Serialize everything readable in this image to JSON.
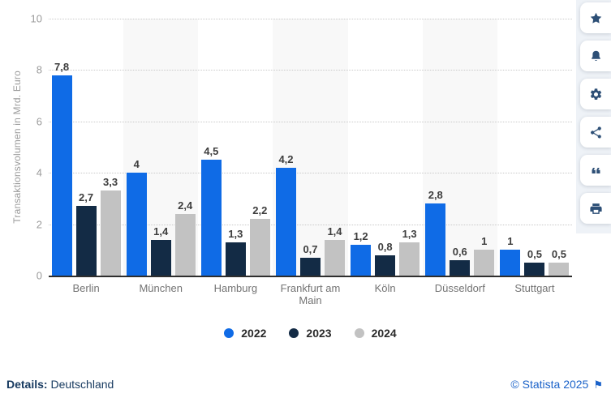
{
  "chart_data": {
    "type": "bar",
    "title": "",
    "ylabel": "Transaktionsvolumen in Mrd. Euro",
    "xlabel": "",
    "ylim": [
      0,
      10
    ],
    "yticks": [
      0,
      2,
      4,
      6,
      8,
      10
    ],
    "grid": "horizontal-dotted",
    "legend_position": "bottom-center",
    "categories": [
      "Berlin",
      "München",
      "Hamburg",
      "Frankfurt am Main",
      "Köln",
      "Düsseldorf",
      "Stuttgart"
    ],
    "shaded_categories": [
      "München",
      "Frankfurt am Main",
      "Düsseldorf"
    ],
    "series": [
      {
        "name": "2022",
        "color": "#0f6be6",
        "values": [
          7.8,
          4,
          4.5,
          4.2,
          1.2,
          2.8,
          1
        ],
        "labels": [
          "7,8",
          "4",
          "4,5",
          "4,2",
          "1,2",
          "2,8",
          "1"
        ]
      },
      {
        "name": "2023",
        "color": "#132b45",
        "values": [
          2.7,
          1.4,
          1.3,
          0.7,
          0.8,
          0.6,
          0.5
        ],
        "labels": [
          "2,7",
          "1,4",
          "1,3",
          "0,7",
          "0,8",
          "0,6",
          "0,5"
        ]
      },
      {
        "name": "2024",
        "color": "#c2c2c2",
        "values": [
          3.3,
          2.4,
          2.2,
          1.4,
          1.3,
          1,
          0.5
        ],
        "labels": [
          "3,3",
          "2,4",
          "2,2",
          "1,4",
          "1,3",
          "1",
          "0,5"
        ]
      }
    ]
  },
  "sidebar": {
    "icons": [
      "star-icon",
      "bell-icon",
      "gear-icon",
      "share-icon",
      "quote-icon",
      "print-icon"
    ]
  },
  "footer": {
    "details_label": "Details:",
    "details_value": "Deutschland",
    "copyright": "© Statista 2025",
    "flag_glyph": "⚑"
  },
  "colors": {
    "band": "#f8f8f8",
    "gridline": "#c9c9c9",
    "axis_line": "#2e2e2e",
    "tick_text": "#9b9b9b",
    "category_text": "#737373",
    "value_text": "#3d3d3d",
    "sidebar_bg": "#eef2f7",
    "icon": "#2d4f76",
    "details_text": "#16395f",
    "link": "#1a62c9"
  }
}
